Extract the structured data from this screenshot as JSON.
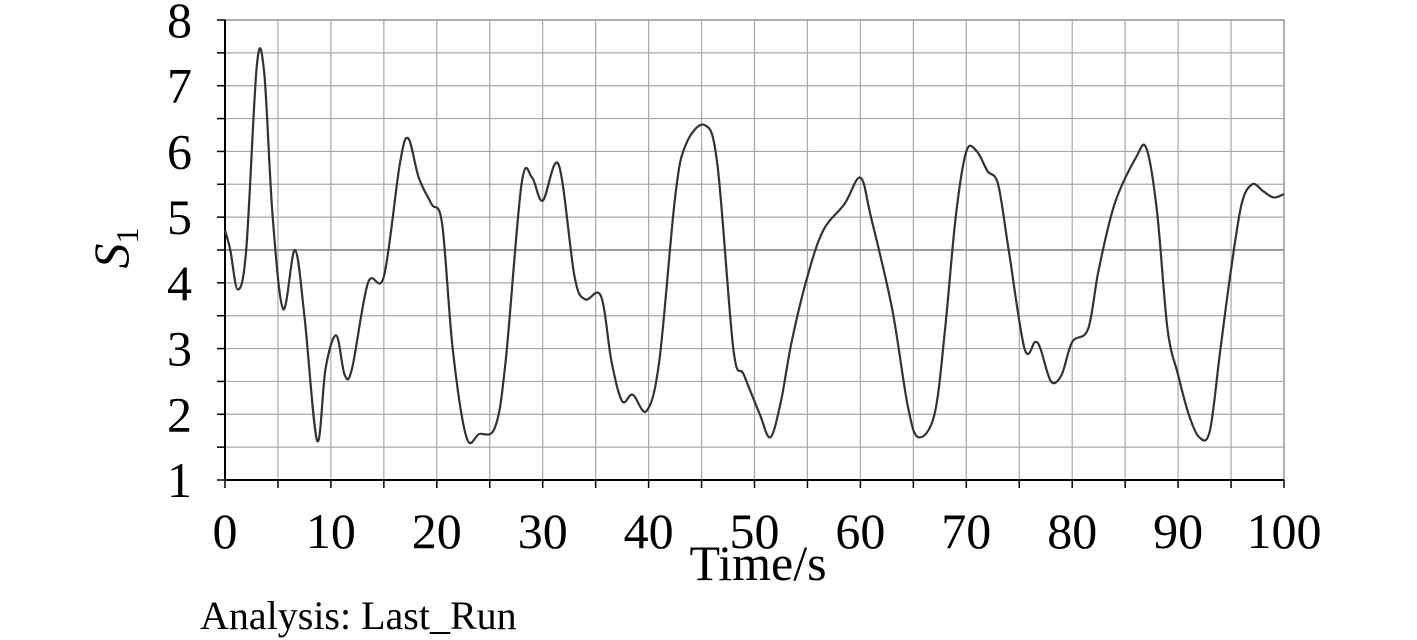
{
  "footer_text": "Analysis: Last_Run",
  "chart_data": {
    "type": "line",
    "title": "",
    "xlabel": "Time/s",
    "ylabel_main": "S",
    "ylabel_sub": "1",
    "xlim": [
      0,
      100
    ],
    "ylim": [
      1,
      8
    ],
    "xticks": [
      "0",
      "10",
      "20",
      "30",
      "40",
      "50",
      "60",
      "70",
      "80",
      "90",
      "100"
    ],
    "yticks": [
      "1",
      "2",
      "3",
      "4",
      "5",
      "6",
      "7",
      "8"
    ],
    "grid": true,
    "reference_line": 4.5,
    "series": [
      {
        "color": "#333333",
        "x": [
          0,
          0.5,
          1.2,
          2,
          3,
          3.7,
          4.5,
          5.5,
          6.6,
          7.5,
          8.7,
          9.5,
          10.5,
          11.3,
          12,
          13.5,
          15,
          16.5,
          17.3,
          18.3,
          19.5,
          20.5,
          21.5,
          22.8,
          24,
          25.5,
          26.5,
          28,
          29,
          30,
          31.5,
          33,
          34,
          35.5,
          36.5,
          37.5,
          38.5,
          39.8,
          41,
          42.5,
          43.5,
          45.3,
          46.5,
          48,
          49,
          50.5,
          51.5,
          52.5,
          53.5,
          55,
          56.5,
          58.5,
          60,
          61,
          63,
          64.5,
          65.5,
          67,
          68,
          69,
          70,
          71,
          72,
          73,
          74,
          75.5,
          76.5,
          77,
          78,
          79,
          80,
          81.5,
          82.5,
          84,
          86,
          87,
          88,
          89,
          90,
          91,
          92,
          93,
          94,
          95,
          96,
          97,
          98,
          99,
          100
        ],
        "y": [
          4.8,
          4.5,
          3.9,
          4.5,
          7.3,
          7.2,
          5.0,
          3.6,
          4.5,
          3.5,
          1.6,
          2.7,
          3.2,
          2.6,
          2.7,
          4.0,
          4.1,
          5.8,
          6.2,
          5.6,
          5.2,
          4.9,
          3.0,
          1.65,
          1.7,
          1.8,
          2.8,
          5.5,
          5.6,
          5.25,
          5.8,
          4.1,
          3.75,
          3.8,
          2.8,
          2.2,
          2.3,
          2.05,
          2.8,
          5.3,
          6.1,
          6.4,
          5.8,
          3.0,
          2.6,
          2.0,
          1.65,
          2.2,
          3.1,
          4.1,
          4.8,
          5.2,
          5.6,
          5.0,
          3.6,
          2.1,
          1.65,
          2.0,
          3.3,
          5.0,
          6.0,
          6.0,
          5.7,
          5.5,
          4.5,
          3.0,
          3.1,
          3.0,
          2.5,
          2.6,
          3.1,
          3.3,
          4.2,
          5.2,
          5.9,
          6.05,
          5.1,
          3.3,
          2.6,
          2.0,
          1.65,
          1.75,
          3.0,
          4.2,
          5.2,
          5.5,
          5.4,
          5.3,
          5.35
        ]
      }
    ]
  }
}
